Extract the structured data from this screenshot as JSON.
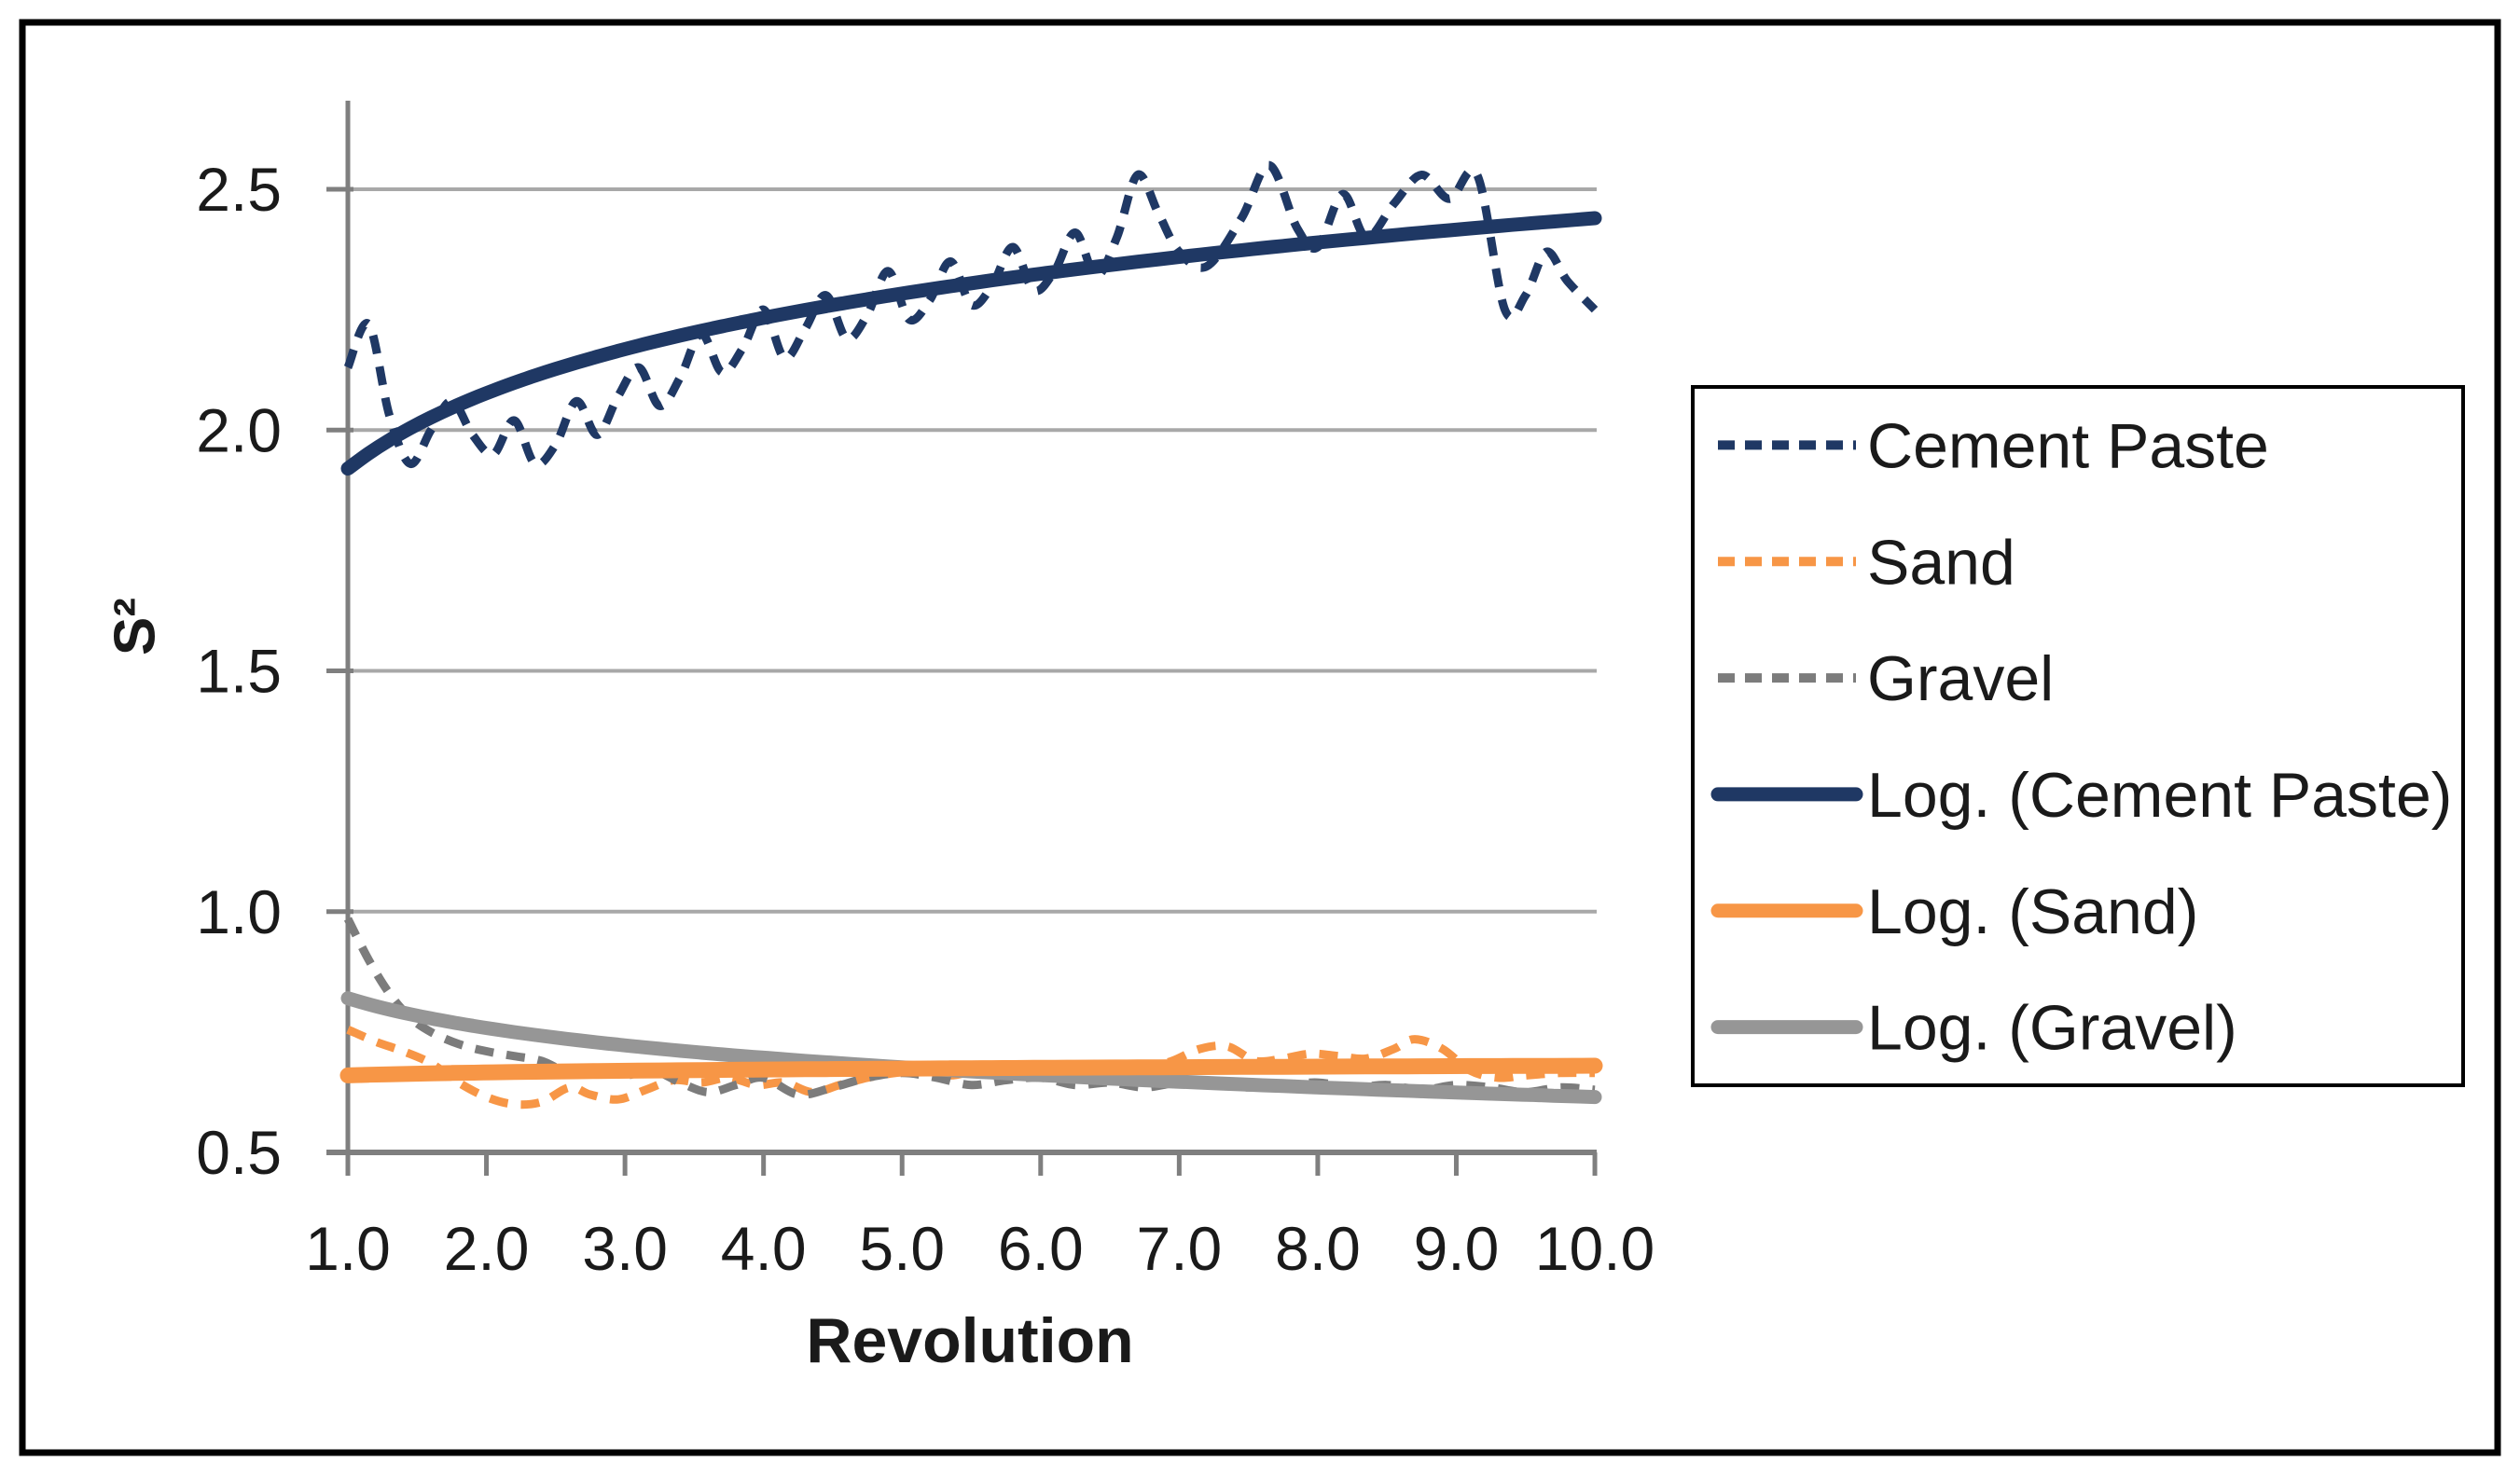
{
  "chart_data": {
    "type": "line",
    "title": "",
    "xlabel": "Revolution",
    "ylabel": "S²",
    "xlim": [
      1.0,
      10.05
    ],
    "ylim": [
      0.5,
      2.68
    ],
    "grid": true,
    "legend_position": "right",
    "colors": {
      "navy": "#1F3864",
      "orange": "#F79646",
      "gray_trend": "#969696",
      "gray_dashed": "#7C7C7C",
      "axis": "#7F7F7F",
      "gridline": "#A8A8A8",
      "border": "#000000",
      "text": "#1a1a1a",
      "background": "#ffffff"
    },
    "x_axis": {
      "ticks": [
        {
          "value": 1,
          "label": "1.0"
        },
        {
          "value": 2,
          "label": "2.0"
        },
        {
          "value": 3,
          "label": "3.0"
        },
        {
          "value": 4,
          "label": "4.0"
        },
        {
          "value": 5,
          "label": "5.0"
        },
        {
          "value": 6,
          "label": "6.0"
        },
        {
          "value": 7,
          "label": "7.0"
        },
        {
          "value": 8,
          "label": "8.0"
        },
        {
          "value": 9,
          "label": "9.0"
        },
        {
          "value": 10,
          "label": "10.0"
        }
      ]
    },
    "y_axis": {
      "ticks": [
        {
          "value": 0.5,
          "label": "0.5"
        },
        {
          "value": 1.0,
          "label": "1.0"
        },
        {
          "value": 1.5,
          "label": "1.5"
        },
        {
          "value": 2.0,
          "label": "2.0"
        },
        {
          "value": 2.5,
          "label": "2.5"
        }
      ]
    },
    "series": [
      {
        "name": "Sand",
        "style": "dashed",
        "color": "#F79646",
        "width": 9,
        "points": [
          [
            1.0,
            0.755
          ],
          [
            1.2,
            0.73
          ],
          [
            1.4,
            0.71
          ],
          [
            1.6,
            0.685
          ],
          [
            1.8,
            0.645
          ],
          [
            2.0,
            0.615
          ],
          [
            2.2,
            0.6
          ],
          [
            2.4,
            0.605
          ],
          [
            2.6,
            0.635
          ],
          [
            2.75,
            0.62
          ],
          [
            2.95,
            0.61
          ],
          [
            3.15,
            0.63
          ],
          [
            3.35,
            0.65
          ],
          [
            3.55,
            0.645
          ],
          [
            3.75,
            0.655
          ],
          [
            3.95,
            0.64
          ],
          [
            4.15,
            0.645
          ],
          [
            4.35,
            0.625
          ],
          [
            4.55,
            0.64
          ],
          [
            4.75,
            0.655
          ],
          [
            4.95,
            0.665
          ],
          [
            5.15,
            0.67
          ],
          [
            5.35,
            0.66
          ],
          [
            5.55,
            0.67
          ],
          [
            5.75,
            0.665
          ],
          [
            5.95,
            0.67
          ],
          [
            6.15,
            0.66
          ],
          [
            6.35,
            0.665
          ],
          [
            6.55,
            0.67
          ],
          [
            6.75,
            0.675
          ],
          [
            6.95,
            0.69
          ],
          [
            7.15,
            0.715
          ],
          [
            7.35,
            0.72
          ],
          [
            7.55,
            0.69
          ],
          [
            7.75,
            0.695
          ],
          [
            7.95,
            0.705
          ],
          [
            8.15,
            0.7
          ],
          [
            8.35,
            0.695
          ],
          [
            8.55,
            0.715
          ],
          [
            8.7,
            0.735
          ],
          [
            8.9,
            0.715
          ],
          [
            9.1,
            0.67
          ],
          [
            9.3,
            0.655
          ],
          [
            9.5,
            0.66
          ],
          [
            9.75,
            0.665
          ],
          [
            10.0,
            0.665
          ]
        ]
      },
      {
        "name": "Gravel",
        "style": "dashed",
        "color": "#7C7C7C",
        "width": 9,
        "points": [
          [
            1.0,
            0.985
          ],
          [
            1.15,
            0.9
          ],
          [
            1.3,
            0.83
          ],
          [
            1.45,
            0.78
          ],
          [
            1.6,
            0.75
          ],
          [
            1.8,
            0.725
          ],
          [
            2.0,
            0.71
          ],
          [
            2.2,
            0.7
          ],
          [
            2.4,
            0.69
          ],
          [
            2.6,
            0.665
          ],
          [
            2.8,
            0.67
          ],
          [
            3.0,
            0.66
          ],
          [
            3.2,
            0.67
          ],
          [
            3.4,
            0.645
          ],
          [
            3.6,
            0.625
          ],
          [
            3.8,
            0.64
          ],
          [
            4.0,
            0.655
          ],
          [
            4.25,
            0.62
          ],
          [
            4.5,
            0.635
          ],
          [
            4.75,
            0.655
          ],
          [
            5.0,
            0.665
          ],
          [
            5.25,
            0.655
          ],
          [
            5.5,
            0.64
          ],
          [
            5.75,
            0.65
          ],
          [
            6.0,
            0.655
          ],
          [
            6.25,
            0.64
          ],
          [
            6.5,
            0.645
          ],
          [
            6.75,
            0.635
          ],
          [
            7.0,
            0.645
          ],
          [
            7.25,
            0.64
          ],
          [
            7.5,
            0.635
          ],
          [
            7.75,
            0.64
          ],
          [
            8.0,
            0.645
          ],
          [
            8.25,
            0.635
          ],
          [
            8.5,
            0.64
          ],
          [
            8.75,
            0.63
          ],
          [
            9.0,
            0.64
          ],
          [
            9.25,
            0.635
          ],
          [
            9.5,
            0.625
          ],
          [
            9.75,
            0.635
          ],
          [
            10.0,
            0.63
          ]
        ]
      },
      {
        "name": "Cement Paste",
        "style": "dashed",
        "color": "#1F3864",
        "width": 9,
        "points": [
          [
            1.0,
            2.13
          ],
          [
            1.15,
            2.22
          ],
          [
            1.3,
            2.03
          ],
          [
            1.45,
            1.93
          ],
          [
            1.6,
            2.0
          ],
          [
            1.75,
            2.06
          ],
          [
            1.9,
            1.99
          ],
          [
            2.05,
            1.95
          ],
          [
            2.2,
            2.02
          ],
          [
            2.35,
            1.93
          ],
          [
            2.5,
            1.97
          ],
          [
            2.65,
            2.06
          ],
          [
            2.8,
            1.99
          ],
          [
            2.95,
            2.07
          ],
          [
            3.1,
            2.13
          ],
          [
            3.25,
            2.05
          ],
          [
            3.4,
            2.11
          ],
          [
            3.55,
            2.2
          ],
          [
            3.7,
            2.12
          ],
          [
            3.85,
            2.17
          ],
          [
            4.0,
            2.25
          ],
          [
            4.15,
            2.15
          ],
          [
            4.3,
            2.21
          ],
          [
            4.45,
            2.28
          ],
          [
            4.6,
            2.19
          ],
          [
            4.75,
            2.24
          ],
          [
            4.9,
            2.33
          ],
          [
            5.05,
            2.23
          ],
          [
            5.2,
            2.27
          ],
          [
            5.35,
            2.35
          ],
          [
            5.5,
            2.26
          ],
          [
            5.65,
            2.3
          ],
          [
            5.8,
            2.38
          ],
          [
            5.95,
            2.29
          ],
          [
            6.1,
            2.33
          ],
          [
            6.25,
            2.41
          ],
          [
            6.4,
            2.32
          ],
          [
            6.55,
            2.4
          ],
          [
            6.7,
            2.53
          ],
          [
            6.85,
            2.45
          ],
          [
            7.0,
            2.37
          ],
          [
            7.2,
            2.34
          ],
          [
            7.45,
            2.44
          ],
          [
            7.65,
            2.55
          ],
          [
            7.85,
            2.42
          ],
          [
            8.0,
            2.38
          ],
          [
            8.18,
            2.49
          ],
          [
            8.35,
            2.4
          ],
          [
            8.55,
            2.47
          ],
          [
            8.75,
            2.53
          ],
          [
            8.95,
            2.48
          ],
          [
            9.15,
            2.53
          ],
          [
            9.35,
            2.25
          ],
          [
            9.5,
            2.28
          ],
          [
            9.65,
            2.37
          ],
          [
            9.8,
            2.31
          ],
          [
            10.0,
            2.25
          ]
        ]
      },
      {
        "name": "Log. (Gravel)",
        "style": "solid",
        "color": "#969696",
        "width": 15,
        "trend": {
          "fn": "log",
          "a": -0.089,
          "b": 0.82,
          "domain": [
            1,
            10
          ]
        }
      },
      {
        "name": "Log. (Sand)",
        "style": "solid",
        "color": "#F79646",
        "width": 17,
        "trend": {
          "fn": "log",
          "a": 0.0087,
          "b": 0.66,
          "domain": [
            1,
            10
          ]
        }
      },
      {
        "name": "Log. (Cement Paste)",
        "style": "solid",
        "color": "#1F3864",
        "width": 15,
        "trend": {
          "fn": "log",
          "a": 0.2258,
          "b": 1.92,
          "domain": [
            1,
            10
          ]
        }
      }
    ],
    "legend": {
      "items": [
        "Cement Paste",
        "Sand",
        "Gravel",
        "Log. (Cement Paste)",
        "Log. (Sand)",
        "Log. (Gravel)"
      ]
    }
  }
}
